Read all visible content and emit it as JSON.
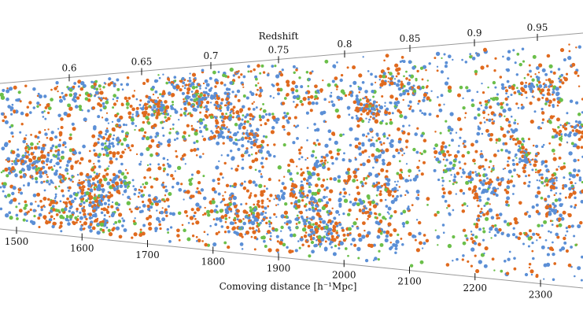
{
  "chart_data": {
    "type": "scatter",
    "title": "",
    "colors": {
      "orange": "#e06a1e",
      "blue": "#5b8fd6",
      "green": "#6bbf4a",
      "axis": "#9a9a9a",
      "background": "#ffffff"
    },
    "top_axis": {
      "label": "Redshift",
      "ticks": [
        {
          "value": 0.6,
          "text": "0.6"
        },
        {
          "value": 0.65,
          "text": "0.65"
        },
        {
          "value": 0.7,
          "text": "0.7"
        },
        {
          "value": 0.75,
          "text": "0.75"
        },
        {
          "value": 0.8,
          "text": "0.8"
        },
        {
          "value": 0.85,
          "text": "0.85"
        },
        {
          "value": 0.9,
          "text": "0.9"
        },
        {
          "value": 0.95,
          "text": "0.95"
        }
      ]
    },
    "bottom_axis": {
      "label": "Comoving distance [h⁻¹Mpc]",
      "ticks": [
        {
          "value": 1500,
          "text": "1500"
        },
        {
          "value": 1600,
          "text": "1600"
        },
        {
          "value": 1700,
          "text": "1700"
        },
        {
          "value": 1800,
          "text": "1800"
        },
        {
          "value": 1900,
          "text": "1900"
        },
        {
          "value": 2000,
          "text": "2000"
        },
        {
          "value": 2100,
          "text": "2100"
        },
        {
          "value": 2200,
          "text": "2200"
        },
        {
          "value": 2300,
          "text": "2300"
        }
      ],
      "range": [
        1420,
        2360
      ]
    },
    "series": [
      {
        "color": "#e06a1e",
        "fraction": 0.4
      },
      {
        "color": "#5b8fd6",
        "fraction": 0.45
      },
      {
        "color": "#6bbf4a",
        "fraction": 0.15
      }
    ]
  }
}
